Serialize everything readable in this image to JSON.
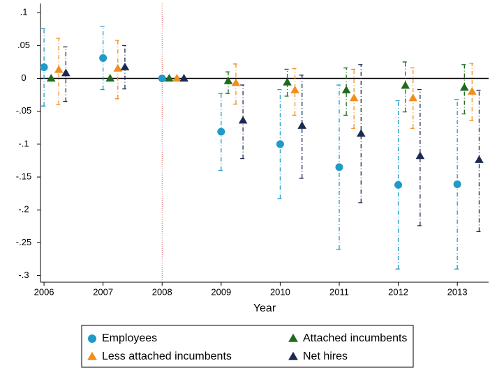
{
  "chart_data": {
    "type": "errorbar",
    "x_label": "Year",
    "categories": [
      2006,
      2007,
      2008,
      2009,
      2010,
      2011,
      2012,
      2013
    ],
    "xlim": [
      2005.94,
      2013.53
    ],
    "ylim": [
      -0.31,
      0.114
    ],
    "yticks": [
      {
        "value": 0.1,
        "label": ".1"
      },
      {
        "value": 0.05,
        "label": ".05"
      },
      0,
      {
        "value": -0.05,
        "label": "-.05"
      },
      {
        "value": -0.1,
        "label": "-.1"
      },
      {
        "value": -0.15,
        "label": "-.15"
      },
      {
        "value": -0.2,
        "label": "-.2"
      },
      {
        "value": -0.25,
        "label": "-.25"
      },
      {
        "value": -0.3,
        "label": "-.3"
      }
    ],
    "hline": 0,
    "vline": 2008,
    "series": [
      {
        "name": "Employees",
        "color": "#1f9ac9",
        "marker": "circle",
        "values": [
          0.017,
          0.031,
          0,
          -0.081,
          -0.1,
          -0.135,
          -0.162,
          -0.161
        ],
        "lower": [
          -0.042,
          -0.017,
          null,
          -0.14,
          -0.183,
          -0.26,
          -0.29,
          -0.29
        ],
        "upper": [
          0.076,
          0.079,
          null,
          -0.023,
          -0.017,
          -0.01,
          -0.034,
          -0.032
        ]
      },
      {
        "name": "Attached incumbents",
        "color": "#1e6b1e",
        "marker": "triangle",
        "values": [
          0,
          0,
          0,
          -0.004,
          -0.006,
          -0.018,
          -0.011,
          -0.014
        ],
        "lower": [
          null,
          null,
          null,
          -0.023,
          -0.027,
          -0.056,
          -0.051,
          -0.054
        ],
        "upper": [
          null,
          null,
          null,
          0.01,
          0.014,
          0.016,
          0.025,
          0.021
        ]
      },
      {
        "name": "Less attached incumbents",
        "color": "#f28e1c",
        "marker": "triangle",
        "values": [
          0.013,
          0.015,
          0,
          -0.007,
          -0.018,
          -0.03,
          -0.03,
          -0.02
        ],
        "lower": [
          -0.04,
          -0.031,
          null,
          -0.039,
          -0.056,
          -0.076,
          -0.076,
          -0.064
        ],
        "upper": [
          0.061,
          0.058,
          null,
          0.022,
          0.015,
          0.014,
          0.016,
          0.023
        ]
      },
      {
        "name": "Net hires",
        "color": "#1c2a52",
        "marker": "triangle",
        "values": [
          0.008,
          0.017,
          0,
          -0.064,
          -0.072,
          -0.084,
          -0.118,
          -0.124
        ],
        "lower": [
          -0.035,
          -0.016,
          null,
          -0.122,
          -0.152,
          -0.189,
          -0.224,
          -0.233
        ],
        "upper": [
          0.048,
          0.05,
          null,
          -0.01,
          0.005,
          0.021,
          -0.017,
          -0.018
        ]
      }
    ]
  }
}
